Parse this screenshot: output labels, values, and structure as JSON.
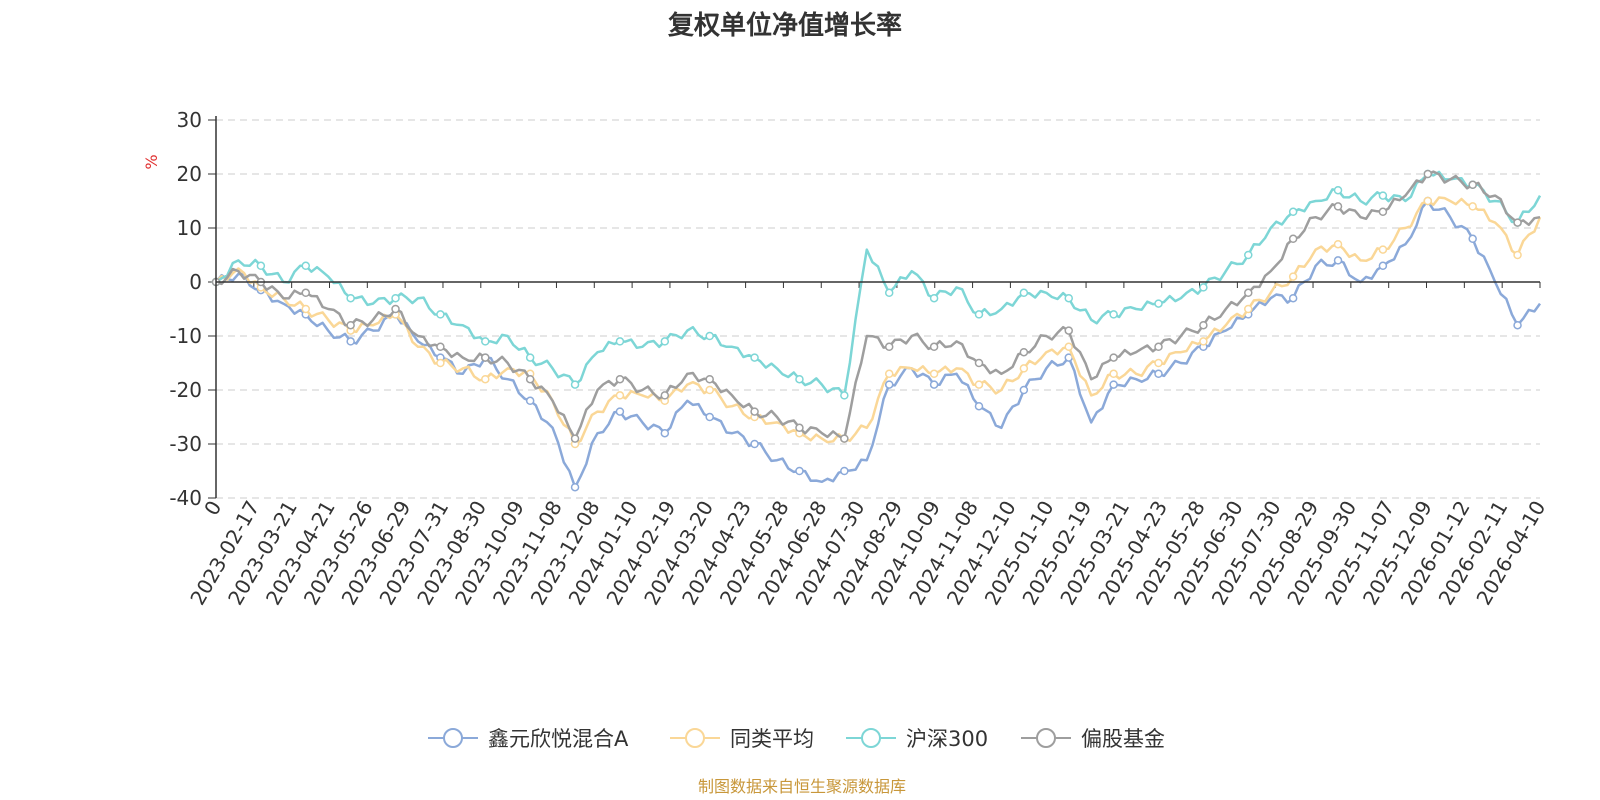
{
  "chart_data": {
    "type": "line",
    "title": "复权单位净值增长率",
    "ylabel": "%",
    "ylim": [
      -40,
      30
    ],
    "yticks": [
      "30",
      "20",
      "10",
      "0",
      "-10",
      "-20",
      "-30",
      "-40"
    ],
    "ytick_values": [
      30,
      20,
      10,
      0,
      -10,
      -20,
      -30,
      -40
    ],
    "xticks": [
      "0",
      "2023-02-17",
      "2023-03-21",
      "2023-04-21",
      "2023-05-26",
      "2023-06-29",
      "2023-07-31",
      "2023-08-30",
      "2023-10-09",
      "2023-11-08",
      "2023-12-08",
      "2024-01-10",
      "2024-02-19",
      "2024-03-20",
      "2024-04-23",
      "2024-05-28",
      "2024-06-28",
      "2024-07-30",
      "2024-08-29",
      "2024-10-09",
      "2024-11-08",
      "2024-12-10",
      "2025-01-10",
      "2025-02-19",
      "2025-03-21",
      "2025-04-23",
      "2025-05-28",
      "2025-06-30",
      "2025-07-30",
      "2025-08-29",
      "2025-09-30",
      "2025-11-07",
      "2025-12-09",
      "2026-01-12",
      "2026-02-11",
      "2026-04-10"
    ],
    "grid": true,
    "legend_position": "bottom",
    "series": [
      {
        "name": "鑫元欣悦混合A",
        "color": "#8ba9d9",
        "values": [
          0,
          1.5,
          -1.5,
          -4,
          -6,
          -9,
          -11,
          -9,
          -6,
          -11,
          -14,
          -17,
          -14,
          -18,
          -22,
          -27,
          -38,
          -28,
          -24,
          -26,
          -28,
          -22,
          -25,
          -28,
          -30,
          -33,
          -35,
          -37,
          -35,
          -33,
          -19,
          -16,
          -19,
          -17,
          -23,
          -27,
          -20,
          -16,
          -14,
          -26,
          -19,
          -18,
          -17,
          -15,
          -12,
          -9,
          -6,
          -3,
          -3,
          3,
          4,
          0,
          3,
          7,
          15,
          12,
          8,
          0,
          -8,
          -4
        ]
      },
      {
        "name": "同类平均",
        "color": "#fad797",
        "values": [
          0,
          2.5,
          -1,
          -3,
          -5,
          -7,
          -9,
          -8,
          -6,
          -12,
          -15,
          -16,
          -18,
          -16,
          -17,
          -22,
          -30,
          -24,
          -21,
          -21,
          -22,
          -19,
          -20,
          -23,
          -25,
          -26,
          -28,
          -29,
          -29,
          -27,
          -17,
          -16,
          -17,
          -16,
          -19,
          -20,
          -16,
          -13,
          -12,
          -21,
          -17,
          -17,
          -15,
          -13,
          -11,
          -8,
          -5,
          -2,
          1,
          6,
          7,
          4,
          6,
          10,
          15,
          15,
          14,
          11,
          5,
          12
        ]
      },
      {
        "name": "沪深300",
        "color": "#7dd6d6",
        "values": [
          0,
          4,
          3,
          0,
          3,
          1,
          -3,
          -4,
          -3,
          -3,
          -6,
          -8,
          -11,
          -10,
          -14,
          -16,
          -19,
          -13,
          -11,
          -12,
          -11,
          -9,
          -10,
          -12,
          -14,
          -16,
          -18,
          -19,
          -21,
          6,
          -2,
          2,
          -3,
          -1,
          -6,
          -5,
          -2,
          -2,
          -3,
          -7,
          -6,
          -5,
          -4,
          -3,
          -1,
          2,
          5,
          10,
          13,
          15,
          17,
          15,
          16,
          15,
          20,
          19,
          18,
          15,
          11,
          16
        ]
      },
      {
        "name": "偏股基金",
        "color": "#9e9e9e",
        "values": [
          0,
          2,
          0,
          -3,
          -2,
          -5,
          -8,
          -7,
          -5,
          -10,
          -12,
          -14,
          -14,
          -15,
          -18,
          -22,
          -29,
          -20,
          -18,
          -20,
          -21,
          -17,
          -18,
          -21,
          -24,
          -25,
          -27,
          -28,
          -29,
          -10,
          -12,
          -10,
          -12,
          -11,
          -15,
          -17,
          -13,
          -10,
          -9,
          -18,
          -14,
          -13,
          -12,
          -10,
          -8,
          -5,
          -2,
          2,
          8,
          12,
          14,
          12,
          13,
          16,
          20,
          19,
          18,
          16,
          11,
          12
        ]
      }
    ]
  },
  "legend": {
    "items": [
      "鑫元欣悦混合A",
      "同类平均",
      "沪深300",
      "偏股基金"
    ]
  },
  "footer": {
    "source_text": "制图数据来自恒生聚源数据库",
    "color": "#c8973a"
  },
  "colors": {
    "ylabel": "#e03030",
    "grid": "#cccccc",
    "axis": "#333333"
  }
}
